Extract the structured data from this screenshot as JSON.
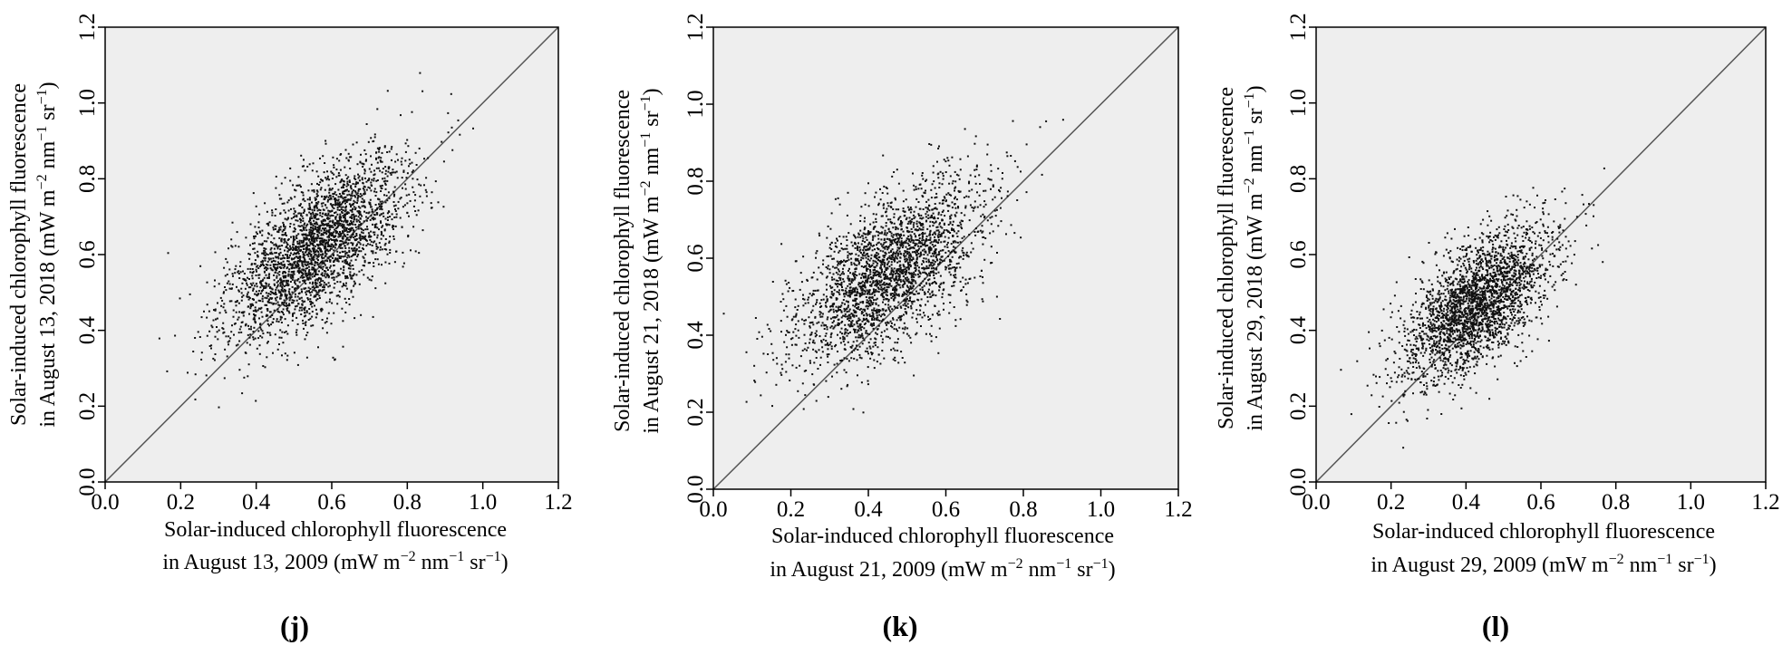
{
  "chart_data": [
    {
      "type": "scatter",
      "panel": "(j)",
      "xlabel_line1": "Solar-induced chlorophyll  fluorescence",
      "xlabel_line2": "in August 13, 2009 (mW m",
      "ylabel_line1": "Solar-induced chlorophyll  fluorescence",
      "ylabel_line2": "in August 13, 2018 (mW m",
      "units": {
        "sup1": "−2",
        "mid": " nm",
        "sup2": "−1",
        "mid2": " sr",
        "sup3": "−1",
        "end": ")"
      },
      "xlim": [
        0,
        1.2
      ],
      "ylim": [
        0,
        1.2
      ],
      "xticks": [
        "0.0",
        "0.2",
        "0.4",
        "0.6",
        "0.8",
        "1.0",
        "1.2"
      ],
      "yticks": [
        "0.0",
        "0.2",
        "0.4",
        "0.6",
        "0.8",
        "1.0",
        "1.2"
      ],
      "reference_line": "1:1",
      "cluster": {
        "x_mean": 0.56,
        "y_mean": 0.62,
        "x_sd": 0.12,
        "y_sd": 0.12,
        "rho": 0.65,
        "n": 2800,
        "seed": 11
      }
    },
    {
      "type": "scatter",
      "panel": "(k)",
      "xlabel_line1": "Solar-induced chlorophyll  fluorescence",
      "xlabel_line2": "in August 21, 2009 (mW m",
      "ylabel_line1": "Solar-induced chlorophyll  fluorescence",
      "ylabel_line2": "in August 21, 2018 (mW m",
      "units": {
        "sup1": "−2",
        "mid": " nm",
        "sup2": "−1",
        "mid2": " sr",
        "sup3": "−1",
        "end": ")"
      },
      "xlim": [
        0,
        1.2
      ],
      "ylim": [
        0,
        1.2
      ],
      "xticks": [
        "0.0",
        "0.2",
        "0.4",
        "0.6",
        "0.8",
        "1.0",
        "1.2"
      ],
      "yticks": [
        "0.0",
        "0.2",
        "0.4",
        "0.6",
        "0.8",
        "1.0",
        "1.2"
      ],
      "reference_line": "1:1",
      "cluster": {
        "x_mean": 0.45,
        "y_mean": 0.56,
        "x_sd": 0.12,
        "y_sd": 0.12,
        "rho": 0.62,
        "n": 2600,
        "seed": 23
      }
    },
    {
      "type": "scatter",
      "panel": "(l)",
      "xlabel_line1": "Solar-induced chlorophyll  fluorescence",
      "xlabel_line2": "in August 29, 2009 (mW m",
      "ylabel_line1": "Solar-induced chlorophyll  fluorescence",
      "ylabel_line2": "in August 29, 2018 (mW m",
      "units": {
        "sup1": "−2",
        "mid": " nm",
        "sup2": "−1",
        "mid2": " sr",
        "sup3": "−1",
        "end": ")"
      },
      "xlim": [
        0,
        1.2
      ],
      "ylim": [
        0,
        1.2
      ],
      "xticks": [
        "0.0",
        "0.2",
        "0.4",
        "0.6",
        "0.8",
        "1.0",
        "1.2"
      ],
      "yticks": [
        "0.0",
        "0.2",
        "0.4",
        "0.6",
        "0.8",
        "1.0",
        "1.2"
      ],
      "reference_line": "1:1",
      "cluster": {
        "x_mean": 0.43,
        "y_mean": 0.47,
        "x_sd": 0.1,
        "y_sd": 0.1,
        "rho": 0.62,
        "n": 2600,
        "seed": 37
      }
    }
  ],
  "colors": {
    "plot_bg": "#eeeeee",
    "point": "#111111",
    "line": "#555555",
    "axis": "#000000"
  }
}
